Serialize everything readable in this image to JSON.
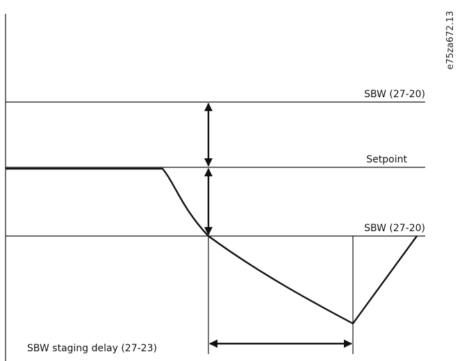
{
  "labels": {
    "sbw_upper": "SBW (27-20)",
    "setpoint": "Setpoint",
    "sbw_lower": "SBW (27-20)",
    "staging_delay": "SBW staging delay (27-23)",
    "figure_code": "e75za672.13"
  }
}
